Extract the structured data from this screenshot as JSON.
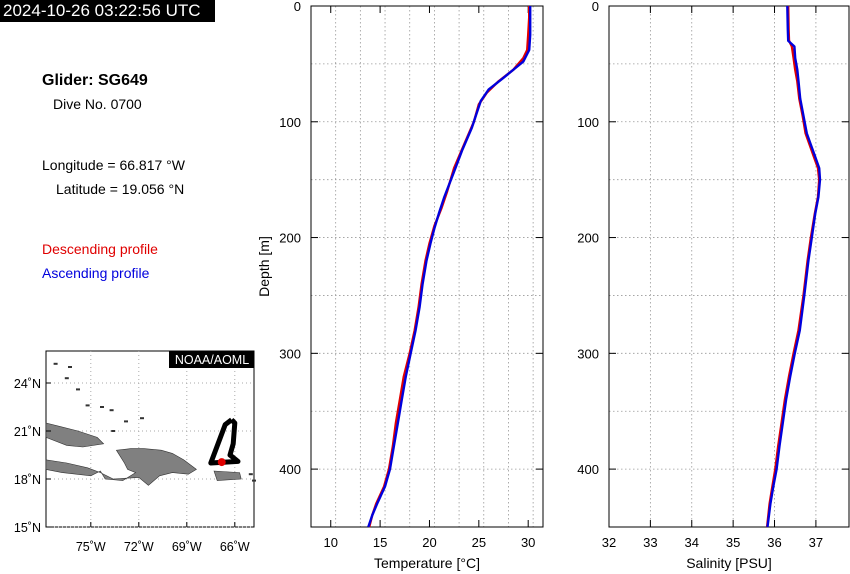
{
  "timestamp": "2024-10-26 03:22:56 UTC",
  "info": {
    "glider": "Glider: SG649",
    "dive": "Dive No. 0700",
    "longitude": "Longitude = 66.817 °W",
    "latitude": "Latitude = 19.056 °N",
    "desc_label": "Descending profile",
    "asc_label": "Ascending profile"
  },
  "colors": {
    "descending": "#e00000",
    "ascending": "#0000dd",
    "map_land": "#808080",
    "track": "#000000"
  },
  "chart_data": [
    {
      "type": "line",
      "xlabel": "Temperature [°C]",
      "ylabel": "Depth [m]",
      "xlim": [
        8,
        31.5
      ],
      "ylim": [
        450,
        0
      ],
      "xticks": [
        10,
        15,
        20,
        25,
        30
      ],
      "yticks": [
        0,
        100,
        200,
        300,
        400
      ],
      "grid": true,
      "series": [
        {
          "name": "Descending profile",
          "color": "#e00000",
          "x": [
            30.1,
            30.1,
            30.0,
            29.9,
            29.5,
            28.5,
            27.0,
            25.8,
            25.0,
            24.5,
            23.5,
            22.5,
            21.8,
            21.2,
            20.5,
            20.0,
            19.6,
            19.2,
            18.9,
            18.5,
            18.0,
            17.4,
            17.0,
            16.6,
            16.3,
            15.9,
            15.4,
            14.6,
            14.2,
            13.9
          ],
          "y": [
            0,
            10,
            25,
            38,
            45,
            55,
            65,
            75,
            85,
            100,
            120,
            140,
            160,
            175,
            190,
            205,
            220,
            240,
            260,
            280,
            300,
            320,
            340,
            360,
            380,
            400,
            415,
            430,
            440,
            450
          ]
        },
        {
          "name": "Ascending profile",
          "color": "#0000dd",
          "x": [
            30.2,
            30.2,
            30.2,
            30.1,
            29.5,
            27.5,
            26.0,
            25.2,
            24.8,
            24.3,
            23.3,
            22.4,
            21.5,
            21.0,
            20.5,
            20.1,
            19.7,
            19.3,
            19.0,
            18.6,
            18.1,
            17.6,
            17.2,
            16.8,
            16.4,
            16.0,
            15.5,
            14.7,
            14.2,
            13.8
          ],
          "y": [
            0,
            10,
            25,
            38,
            48,
            62,
            72,
            82,
            92,
            105,
            125,
            145,
            165,
            178,
            192,
            205,
            220,
            240,
            260,
            280,
            300,
            320,
            340,
            360,
            380,
            400,
            415,
            430,
            440,
            450
          ]
        }
      ]
    },
    {
      "type": "line",
      "xlabel": "Salinity [PSU]",
      "ylabel": "",
      "xlim": [
        32,
        37.8
      ],
      "ylim": [
        450,
        0
      ],
      "xticks": [
        32,
        33,
        34,
        35,
        36,
        37
      ],
      "yticks": [
        0,
        100,
        200,
        300,
        400
      ],
      "grid": true,
      "series": [
        {
          "name": "Descending profile",
          "color": "#e00000",
          "x": [
            36.33,
            36.34,
            36.35,
            36.42,
            36.46,
            36.5,
            36.55,
            36.6,
            36.68,
            36.75,
            36.85,
            36.95,
            37.05,
            37.08,
            37.05,
            36.97,
            36.88,
            36.8,
            36.7,
            36.58,
            36.46,
            36.35,
            36.25,
            36.17,
            36.09,
            36.02,
            35.95,
            35.88,
            35.82
          ],
          "y": [
            0,
            20,
            30,
            35,
            45,
            55,
            65,
            80,
            95,
            110,
            120,
            130,
            140,
            150,
            165,
            180,
            200,
            220,
            250,
            280,
            300,
            320,
            340,
            360,
            380,
            400,
            415,
            430,
            450
          ]
        },
        {
          "name": "Ascending profile",
          "color": "#0000dd",
          "x": [
            36.31,
            36.32,
            36.33,
            36.48,
            36.5,
            36.55,
            36.58,
            36.62,
            36.7,
            36.78,
            36.88,
            36.98,
            37.08,
            37.1,
            37.06,
            36.98,
            36.9,
            36.82,
            36.72,
            36.61,
            36.49,
            36.38,
            36.28,
            36.2,
            36.12,
            36.05,
            35.97,
            35.9,
            35.83
          ],
          "y": [
            0,
            20,
            30,
            35,
            45,
            55,
            65,
            80,
            95,
            110,
            120,
            130,
            140,
            150,
            165,
            180,
            200,
            220,
            250,
            280,
            300,
            320,
            340,
            360,
            380,
            400,
            415,
            430,
            450
          ]
        }
      ]
    }
  ],
  "map": {
    "label": "NOAA/AOML",
    "lon_ticks": [
      "75˚W",
      "72˚W",
      "69˚W",
      "66˚W"
    ],
    "lat_ticks": [
      "24˚N",
      "21˚N",
      "18˚N",
      "15˚N"
    ],
    "lon_values": [
      -75,
      -72,
      -69,
      -66
    ],
    "lat_values": [
      24,
      21,
      18,
      15
    ],
    "extent": {
      "lon": [
        -77.8,
        -64.8
      ],
      "lat": [
        15,
        26
      ]
    },
    "track": [
      [
        -66.2,
        21.7
      ],
      [
        -66.0,
        21.5
      ],
      [
        -66.1,
        20.2
      ],
      [
        -66.3,
        19.5
      ],
      [
        -65.8,
        19.1
      ],
      [
        -67.5,
        19.0
      ],
      [
        -67.2,
        19.8
      ],
      [
        -66.6,
        21.4
      ],
      [
        -66.2,
        21.7
      ]
    ],
    "glider_position": [
      -66.817,
      19.056
    ]
  }
}
